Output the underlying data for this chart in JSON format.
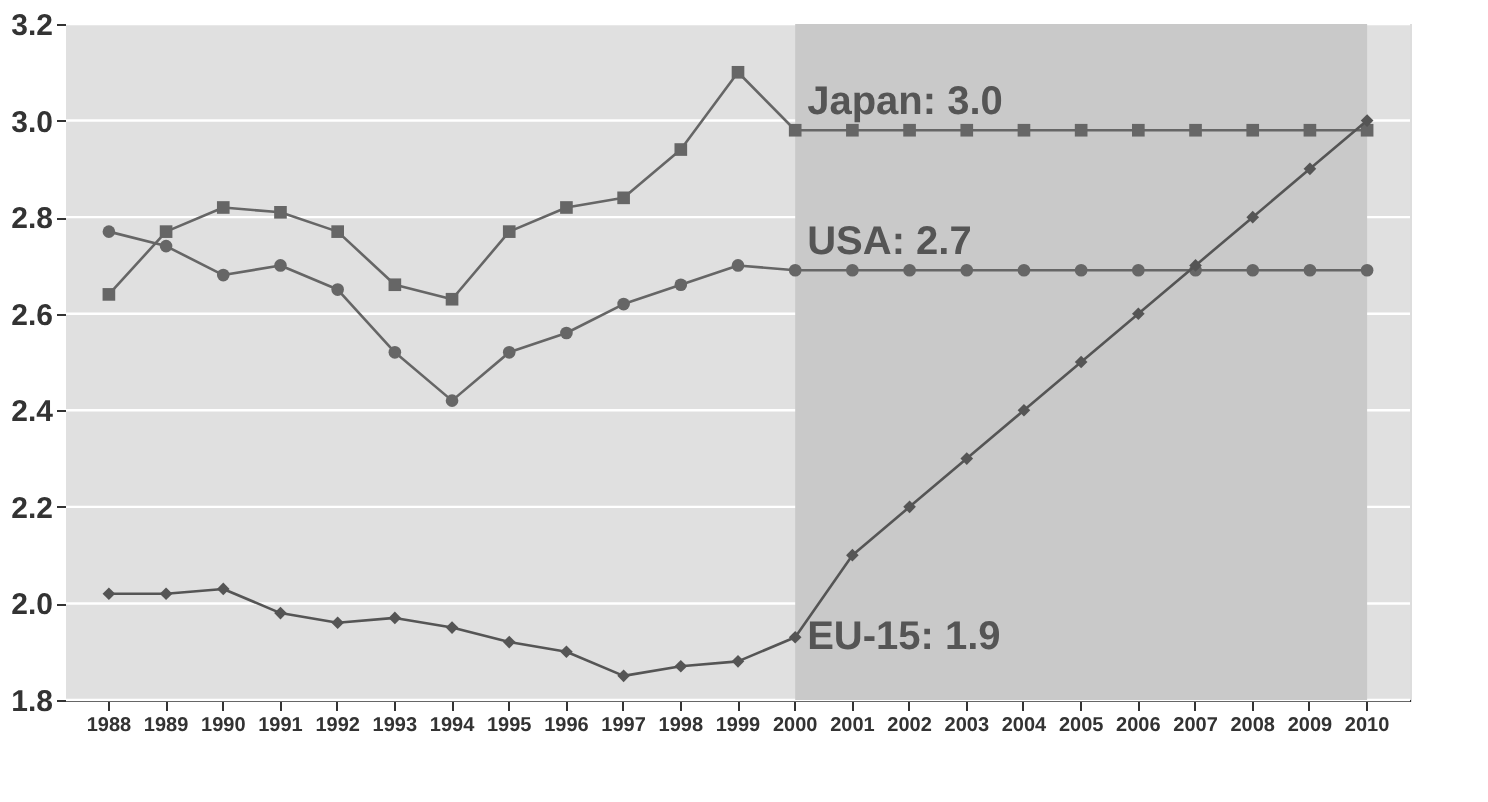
{
  "chart_data": {
    "type": "line",
    "categories": [
      "1988",
      "1989",
      "1990",
      "1991",
      "1992",
      "1993",
      "1994",
      "1995",
      "1996",
      "1997",
      "1998",
      "1999",
      "2000",
      "2001",
      "2002",
      "2003",
      "2004",
      "2005",
      "2006",
      "2007",
      "2008",
      "2009",
      "2010"
    ],
    "series": [
      {
        "color": "#666666",
        "marker": "square",
        "values": [
          2.64,
          2.77,
          2.82,
          2.81,
          2.77,
          2.66,
          2.63,
          2.77,
          2.82,
          2.84,
          2.94,
          3.1,
          2.98,
          2.98,
          2.98,
          2.98,
          2.98,
          2.98,
          2.98,
          2.98,
          2.98,
          2.98,
          2.98
        ]
      },
      {
        "color": "#666666",
        "marker": "circle",
        "values": [
          2.77,
          2.74,
          2.68,
          2.7,
          2.65,
          2.52,
          2.42,
          2.52,
          2.56,
          2.62,
          2.66,
          2.7,
          2.69,
          2.69,
          2.69,
          2.69,
          2.69,
          2.69,
          2.69,
          2.69,
          2.69,
          2.69,
          2.69
        ]
      },
      {
        "color": "#555555",
        "marker": "diamond",
        "values": [
          2.02,
          2.02,
          2.03,
          1.98,
          1.96,
          1.97,
          1.95,
          1.92,
          1.9,
          1.85,
          1.87,
          1.88,
          1.93,
          2.1,
          2.2,
          2.3,
          2.4,
          2.5,
          2.6,
          2.7,
          2.8,
          2.9,
          3.0
        ]
      }
    ],
    "annotations": [
      {
        "text": "Japan: 3.0",
        "x": "2000",
        "y": 2.98
      },
      {
        "text": "USA: 2.7",
        "x": "2000",
        "y": 2.69
      },
      {
        "text": "EU-15: 1.9",
        "x": "2000",
        "y": 1.93
      }
    ],
    "bands": [
      {
        "axis": "x",
        "from": "2000",
        "to": "2010",
        "color": "#c9c9c9"
      }
    ],
    "ylim": [
      1.8,
      3.2
    ],
    "yticks": [
      1.8,
      {
        "value": 2,
        "label": "2.0"
      },
      2.2,
      2.4,
      2.6,
      2.8,
      {
        "value": 3,
        "label": "3.0"
      },
      3.2
    ],
    "grid": "y",
    "line_style": "solid"
  }
}
